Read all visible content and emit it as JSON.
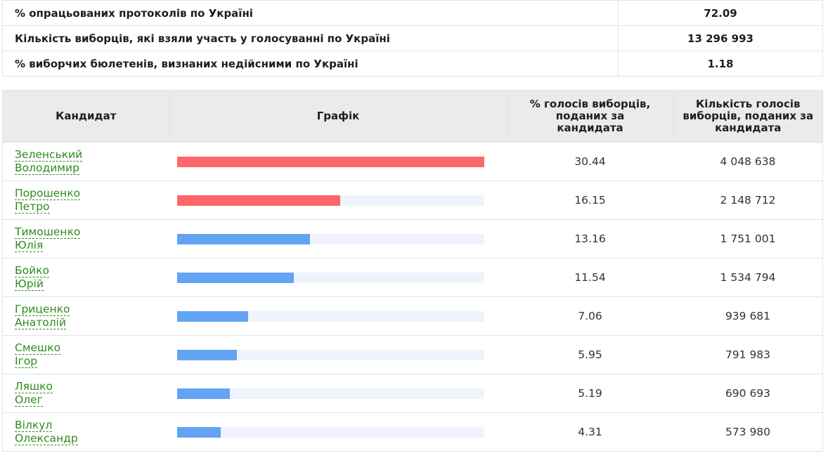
{
  "summary": [
    {
      "label": "% опрацьованих протоколів по Україні",
      "value": "72.09"
    },
    {
      "label": "Кількість виборців, які взяли участь у голосуванні по Україні",
      "value": "13 296 993"
    },
    {
      "label": "% виборчих бюлетенів, визнаних недійсними по Україні",
      "value": "1.18"
    }
  ],
  "headers": {
    "candidate": "Кандидат",
    "chart": "Графік",
    "pct_line1": "% голосів виборців,",
    "pct_line2": "поданих за",
    "pct_line3": "кандидата",
    "count_line1": "Кількість голосів",
    "count_line2": "виборців, поданих за",
    "count_line3": "кандидата"
  },
  "colors": {
    "leader": "#fd6769",
    "other": "#63a3f4",
    "track": "#eef3fc",
    "link": "#2f8a1e"
  },
  "chart_data": {
    "type": "bar",
    "max_value": 30.44,
    "categories": [
      "Зеленський Володимир",
      "Порошенко Петро",
      "Тимошенко Юлія",
      "Бойко Юрій",
      "Гриценко Анатолій",
      "Смешко Ігор",
      "Ляшко Олег",
      "Вілкул Олександр"
    ],
    "values": [
      30.44,
      16.15,
      13.16,
      11.54,
      7.06,
      5.95,
      5.19,
      4.31
    ]
  },
  "rows": [
    {
      "surname": "Зеленський",
      "first": "Володимир",
      "pct": "30.44",
      "votes": "4 048 638",
      "color": "leader"
    },
    {
      "surname": "Порошенко",
      "first": "Петро",
      "pct": "16.15",
      "votes": "2 148 712",
      "color": "leader"
    },
    {
      "surname": "Тимошенко",
      "first": "Юлія",
      "pct": "13.16",
      "votes": "1 751 001",
      "color": "other"
    },
    {
      "surname": "Бойко",
      "first": "Юрій",
      "pct": "11.54",
      "votes": "1 534 794",
      "color": "other"
    },
    {
      "surname": "Гриценко",
      "first": "Анатолій",
      "pct": "7.06",
      "votes": "939 681",
      "color": "other"
    },
    {
      "surname": "Смешко",
      "first": "Ігор",
      "pct": "5.95",
      "votes": "791 983",
      "color": "other"
    },
    {
      "surname": "Ляшко",
      "first": "Олег",
      "pct": "5.19",
      "votes": "690 693",
      "color": "other"
    },
    {
      "surname": "Вілкул",
      "first": "Олександр",
      "pct": "4.31",
      "votes": "573 980",
      "color": "other"
    }
  ]
}
